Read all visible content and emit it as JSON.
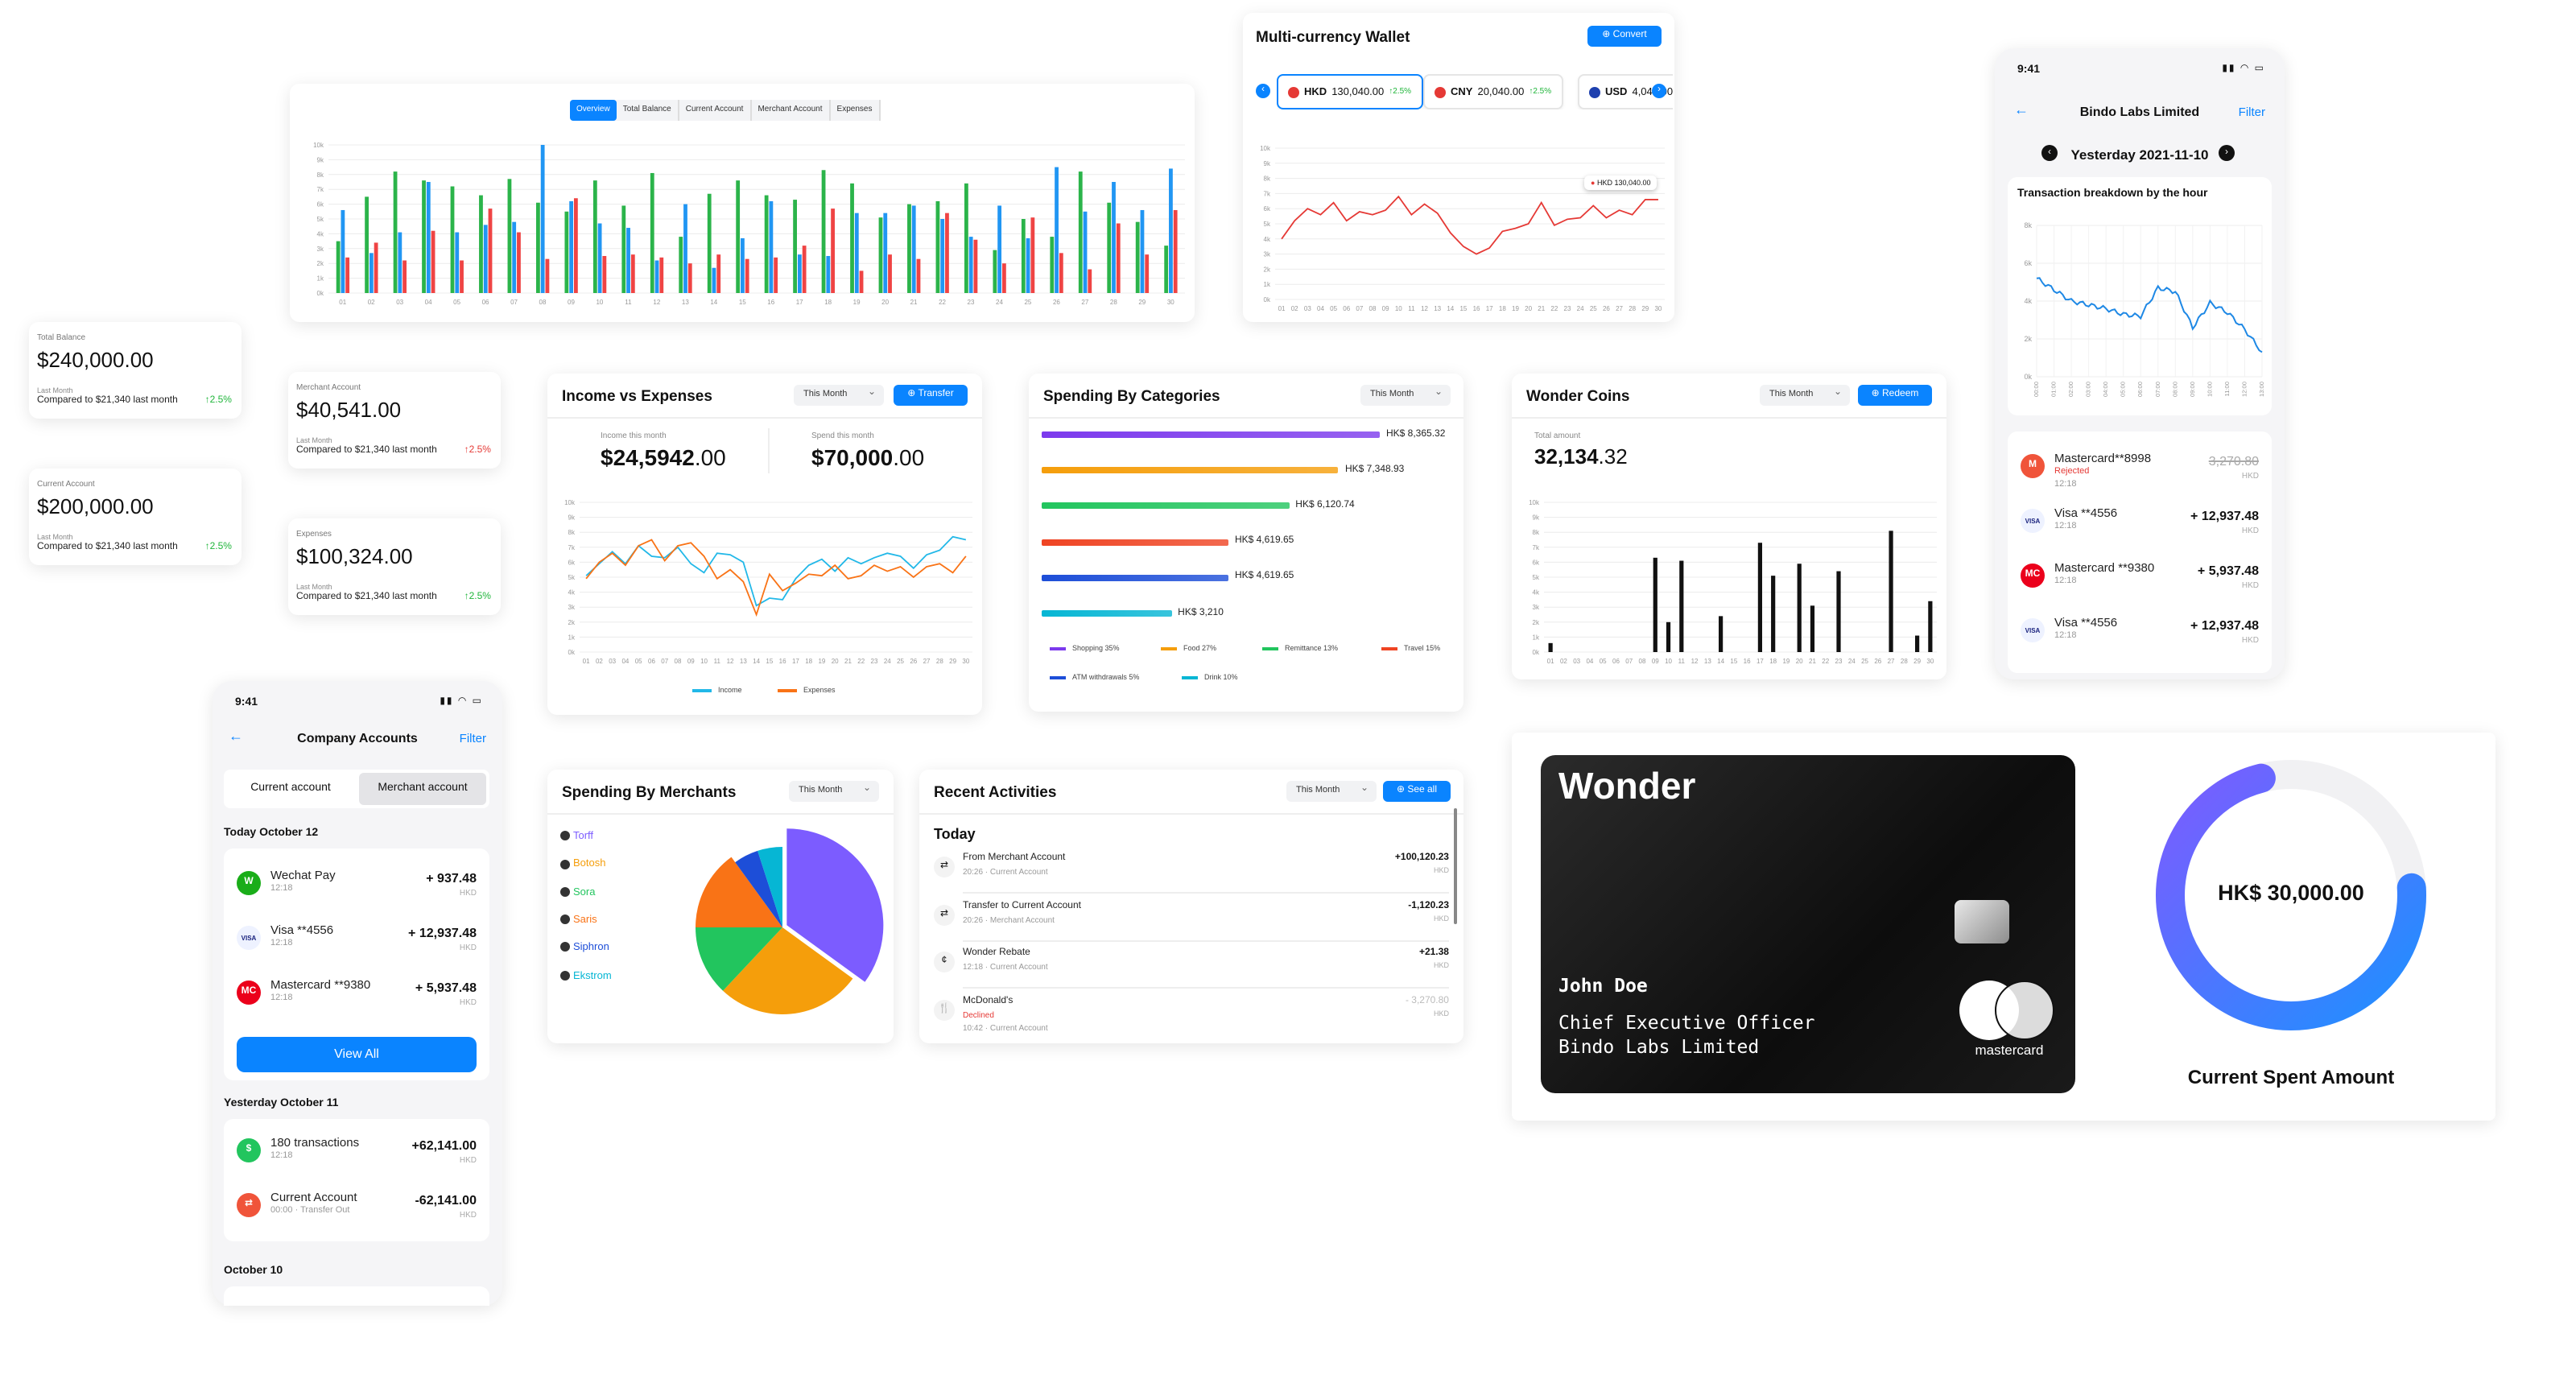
{
  "overview": {
    "tabs": [
      "Overview",
      "Total Balance",
      "Current Account",
      "Merchant Account",
      "Expenses"
    ],
    "y_ticks": [
      "10k",
      "9k",
      "8k",
      "7k",
      "6k",
      "5k",
      "4k",
      "3k",
      "2k",
      "1k",
      "0k"
    ],
    "x_ticks": [
      "01",
      "02",
      "03",
      "04",
      "05",
      "06",
      "07",
      "08",
      "09",
      "10",
      "11",
      "12",
      "13",
      "14",
      "15",
      "16",
      "17",
      "18",
      "19",
      "20",
      "21",
      "22",
      "23",
      "24",
      "25",
      "26",
      "27",
      "28",
      "29",
      "30"
    ]
  },
  "balances": [
    {
      "label": "Total Balance",
      "amount": "$240,000",
      "cents": ".00",
      "sub": "Last Month",
      "compare": "Compared to $21,340 last month",
      "pct": "↑2.5%",
      "dir": "up"
    },
    {
      "label": "Current Account",
      "amount": "$200,000",
      "cents": ".00",
      "sub": "Last Month",
      "compare": "Compared to $21,340 last month",
      "pct": "↑2.5%",
      "dir": "up"
    },
    {
      "label": "Merchant Account",
      "amount": "$40,541",
      "cents": ".00",
      "sub": "Last Month",
      "compare": "Compared to $21,340 last month",
      "pct": "↑2.5%",
      "dir": "down"
    },
    {
      "label": "Expenses",
      "amount": "$100,324",
      "cents": ".00",
      "sub": "Last Month",
      "compare": "Compared to $21,340 last month",
      "pct": "↑2.5%",
      "dir": "up"
    }
  ],
  "wallet": {
    "title": "Multi-currency Wallet",
    "convert": "⊕ Convert",
    "currencies": [
      {
        "code": "HKD",
        "amount": "130,040.00",
        "pct": "↑2.5%",
        "flag": "#e53935"
      },
      {
        "code": "CNY",
        "amount": "20,040.00",
        "pct": "↑2.5%",
        "flag": "#e53935"
      },
      {
        "code": "USD",
        "amount": "4,040.00",
        "pct": "",
        "flag": "#1e40af"
      }
    ],
    "tooltip": "HKD 130,040.00",
    "y_ticks": [
      "10k",
      "9k",
      "8k",
      "7k",
      "6k",
      "5k",
      "4k",
      "3k",
      "2k",
      "1k",
      "0k"
    ],
    "x_ticks": [
      "01",
      "02",
      "03",
      "04",
      "05",
      "06",
      "07",
      "08",
      "09",
      "10",
      "11",
      "12",
      "13",
      "14",
      "15",
      "16",
      "17",
      "18",
      "19",
      "20",
      "21",
      "22",
      "23",
      "24",
      "25",
      "26",
      "27",
      "28",
      "29",
      "30"
    ]
  },
  "bindo_phone": {
    "time": "9:41",
    "title": "Bindo Labs Limited",
    "filter": "Filter",
    "date": "Yesterday 2021-11-10",
    "chart_title": "Transaction breakdown by the hour",
    "y_ticks": [
      "8k",
      "6k",
      "4k",
      "2k",
      "0k"
    ],
    "x_ticks": [
      "00:00",
      "01:00",
      "02:00",
      "03:00",
      "04:00",
      "05:00",
      "06:00",
      "07:00",
      "08:00",
      "09:00",
      "10:00",
      "11:00",
      "12:00",
      "13:00"
    ],
    "rows": [
      {
        "name": "Mastercard**8998",
        "status": "Rejected",
        "time": "12:18",
        "amount": "3,270.80",
        "cur": "HKD",
        "icon": "M",
        "color": "#f0543a"
      },
      {
        "name": "Visa **4556",
        "status": "",
        "time": "12:18",
        "amount": "+ 12,937.48",
        "cur": "HKD",
        "icon": "VISA",
        "color": "#1a237e"
      },
      {
        "name": "Mastercard **9380",
        "status": "",
        "time": "12:18",
        "amount": "+ 5,937.48",
        "cur": "HKD",
        "icon": "MC",
        "color": "#eb001b"
      },
      {
        "name": "Visa **4556",
        "status": "",
        "time": "12:18",
        "amount": "+ 12,937.48",
        "cur": "HKD",
        "icon": "VISA",
        "color": "#1a237e"
      }
    ]
  },
  "income": {
    "title": "Income vs Expenses",
    "period": "This Month",
    "transfer": "⊕ Transfer",
    "income_label": "Income this month",
    "income_amt": "$24,5942",
    "income_cents": ".00",
    "spend_label": "Spend this month",
    "spend_amt": "$70,000",
    "spend_cents": ".00",
    "legend": [
      "Income",
      "Expenses"
    ],
    "y_ticks": [
      "10k",
      "9k",
      "8k",
      "7k",
      "6k",
      "5k",
      "4k",
      "3k",
      "2k",
      "1k",
      "0k"
    ],
    "x_ticks": [
      "01",
      "02",
      "03",
      "04",
      "05",
      "06",
      "07",
      "08",
      "09",
      "10",
      "11",
      "12",
      "13",
      "14",
      "15",
      "16",
      "17",
      "18",
      "19",
      "20",
      "21",
      "22",
      "23",
      "24",
      "25",
      "26",
      "27",
      "28",
      "29",
      "30"
    ]
  },
  "categories": {
    "title": "Spending By Categories",
    "period": "This Month",
    "bars": [
      {
        "label": "HK$ 8,365.32",
        "color": "#7c3aed"
      },
      {
        "label": "HK$ 7,348.93",
        "color": "#f59e0b"
      },
      {
        "label": "HK$ 6,120.74",
        "color": "#22c55e"
      },
      {
        "label": "HK$ 4,619.65",
        "color": "#ef4423"
      },
      {
        "label": "HK$ 4,619.65",
        "color": "#1d4ed8"
      },
      {
        "label": "HK$ 3,210",
        "color": "#06b6d4"
      }
    ],
    "legend": [
      {
        "label": "Shopping 35%",
        "color": "#7c3aed"
      },
      {
        "label": "Food 27%",
        "color": "#f59e0b"
      },
      {
        "label": "Remittance 13%",
        "color": "#22c55e"
      },
      {
        "label": "Travel 15%",
        "color": "#ef4423"
      },
      {
        "label": "ATM withdrawals 5%",
        "color": "#1d4ed8"
      },
      {
        "label": "Drink 10%",
        "color": "#06b6d4"
      }
    ]
  },
  "coins": {
    "title": "Wonder Coins",
    "period": "This Month",
    "redeem": "⊕ Redeem",
    "total_label": "Total amount",
    "total": "32,134",
    "total_dec": ".32",
    "y_ticks": [
      "10k",
      "9k",
      "8k",
      "7k",
      "6k",
      "5k",
      "4k",
      "3k",
      "2k",
      "1k",
      "0k"
    ],
    "x_ticks": [
      "01",
      "02",
      "03",
      "04",
      "05",
      "06",
      "07",
      "08",
      "09",
      "10",
      "11",
      "12",
      "13",
      "14",
      "15",
      "16",
      "17",
      "18",
      "19",
      "20",
      "21",
      "22",
      "23",
      "24",
      "25",
      "26",
      "27",
      "28",
      "29",
      "30"
    ]
  },
  "company_phone": {
    "time": "9:41",
    "title": "Company Accounts",
    "filter": "Filter",
    "tabs": [
      "Current account",
      "Merchant account"
    ],
    "today": "Today October 12",
    "today_rows": [
      {
        "name": "Wechat Pay",
        "time": "12:18",
        "amount": "+ 937.48",
        "cur": "HKD",
        "icon": "W",
        "color": "#1aad19"
      },
      {
        "name": "Visa **4556",
        "time": "12:18",
        "amount": "+ 12,937.48",
        "cur": "HKD",
        "icon": "VISA",
        "color": "#1a237e"
      },
      {
        "name": "Mastercard **9380",
        "time": "12:18",
        "amount": "+ 5,937.48",
        "cur": "HKD",
        "icon": "MC",
        "color": "#eb001b"
      }
    ],
    "view_all": "View All",
    "yesterday": "Yesterday October 11",
    "yesterday_rows": [
      {
        "name": "180 transactions",
        "time": "12:18",
        "amount": "+62,141.00",
        "cur": "HKD",
        "icon": "$",
        "color": "#22c55e"
      },
      {
        "name": "Current Account",
        "time": "00:00 · Transfer Out",
        "amount": "-62,141.00",
        "cur": "HKD",
        "icon": "⇄",
        "color": "#f0543a"
      }
    ],
    "older": "October 10"
  },
  "merchants": {
    "title": "Spending By Merchants",
    "period": "This Month",
    "items": [
      {
        "label": "Torff",
        "color": "#7c5cff"
      },
      {
        "label": "Botosh",
        "color": "#f59e0b"
      },
      {
        "label": "Sora",
        "color": "#22c55e"
      },
      {
        "label": "Saris",
        "color": "#f97316"
      },
      {
        "label": "Siphron",
        "color": "#1d4ed8"
      },
      {
        "label": "Ekstrom",
        "color": "#06b6d4"
      }
    ]
  },
  "activities": {
    "title": "Recent Activities",
    "period": "This Month",
    "see_all": "⊕ See all",
    "day": "Today",
    "rows": [
      {
        "name": "From Merchant Account",
        "status": "",
        "meta": "20:26 · Current Account",
        "amount": "+100,120.23",
        "cur": "HKD",
        "icon": "⇄"
      },
      {
        "name": "Transfer to Current Account",
        "status": "",
        "meta": "20:26 · Merchant Account",
        "amount": "-1,120.23",
        "cur": "HKD",
        "icon": "⇄"
      },
      {
        "name": "Wonder Rebate",
        "status": "",
        "meta": "12:18 · Current Account",
        "amount": "+21.38",
        "cur": "HKD",
        "icon": "¢"
      },
      {
        "name": "McDonald's",
        "status": "Declined",
        "meta": "10:42 · Current Account",
        "amount": "- 3,270.80",
        "cur": "HKD",
        "icon": "🍴"
      }
    ]
  },
  "card": {
    "brand": "Wonder",
    "holder": "John Doe",
    "role": "Chief Executive Officer",
    "company": "Bindo Labs Limited",
    "network": "mastercard"
  },
  "spent": {
    "amount": "HK$ 30,000.00",
    "label": "Current Spent Amount",
    "progress": 0.72
  },
  "chart_data": [
    {
      "type": "bar",
      "categories": [
        "01",
        "02",
        "03",
        "04",
        "05",
        "06",
        "07",
        "08",
        "09",
        "10",
        "11",
        "12",
        "13",
        "14",
        "15",
        "16",
        "17",
        "18",
        "19",
        "20",
        "21",
        "22",
        "23",
        "24",
        "25",
        "26",
        "27",
        "28",
        "29",
        "30"
      ],
      "ylim": [
        0,
        10
      ],
      "series": [
        {
          "color": "#2bb44a",
          "values": [
            3.5,
            6.5,
            8.2,
            7.6,
            7.2,
            6.6,
            7.7,
            6.1,
            5.5,
            7.6,
            5.9,
            8.1,
            3.8,
            6.7,
            7.6,
            6.6,
            6.3,
            8.3,
            7.4,
            5.1,
            6.0,
            6.2,
            7.4,
            2.9,
            5.0,
            3.8,
            8.2,
            6.1,
            4.8,
            3.2
          ]
        },
        {
          "color": "#2196f3",
          "values": [
            5.6,
            2.7,
            4.1,
            7.5,
            4.1,
            4.6,
            4.8,
            10.0,
            6.2,
            4.7,
            4.4,
            2.2,
            6.0,
            1.7,
            3.7,
            6.2,
            2.6,
            2.5,
            5.4,
            5.4,
            5.9,
            5.0,
            3.8,
            5.9,
            3.7,
            8.5,
            5.5,
            7.5,
            5.6,
            8.4
          ]
        },
        {
          "color": "#ef4444",
          "values": [
            2.4,
            3.4,
            2.2,
            4.2,
            2.2,
            5.7,
            4.1,
            2.3,
            6.4,
            2.5,
            2.6,
            2.4,
            2.0,
            2.6,
            2.3,
            2.4,
            3.2,
            5.7,
            1.5,
            2.6,
            2.3,
            5.4,
            3.6,
            2.0,
            5.1,
            2.7,
            1.6,
            4.7,
            2.6,
            5.6
          ]
        }
      ]
    },
    {
      "type": "line",
      "x": [
        "01",
        "02",
        "03",
        "04",
        "05",
        "06",
        "07",
        "08",
        "09",
        "10",
        "11",
        "12",
        "13",
        "14",
        "15",
        "16",
        "17",
        "18",
        "19",
        "20",
        "21",
        "22",
        "23",
        "24",
        "25",
        "26",
        "27",
        "28",
        "29",
        "30"
      ],
      "ylim": [
        0,
        10
      ],
      "series": [
        {
          "color": "#e53935",
          "values": [
            4.0,
            5.2,
            6.0,
            5.6,
            6.4,
            5.2,
            5.8,
            5.6,
            5.9,
            6.8,
            5.6,
            6.3,
            5.7,
            4.4,
            3.5,
            3.0,
            3.4,
            4.5,
            4.7,
            5.0,
            6.4,
            4.9,
            5.3,
            5.4,
            6.2,
            5.4,
            5.9,
            5.6,
            6.6,
            6.6
          ]
        }
      ]
    },
    {
      "type": "line",
      "x": [
        "00:00",
        "01:00",
        "02:00",
        "03:00",
        "04:00",
        "05:00",
        "06:00",
        "07:00",
        "08:00",
        "09:00",
        "10:00",
        "11:00",
        "12:00",
        "13:00"
      ],
      "ylim": [
        0,
        8
      ],
      "series": [
        {
          "color": "#1e88e5",
          "values": [
            5.2,
            4.6,
            4.0,
            3.8,
            3.6,
            3.3,
            3.2,
            4.7,
            4.5,
            2.6,
            3.9,
            3.4,
            2.5,
            1.3
          ]
        }
      ]
    },
    {
      "type": "line",
      "x": [
        "01",
        "02",
        "03",
        "04",
        "05",
        "06",
        "07",
        "08",
        "09",
        "10",
        "11",
        "12",
        "13",
        "14",
        "15",
        "16",
        "17",
        "18",
        "19",
        "20",
        "21",
        "22",
        "23",
        "24",
        "25",
        "26",
        "27",
        "28",
        "29",
        "30"
      ],
      "ylim": [
        0,
        10
      ],
      "series": [
        {
          "name": "Income",
          "color": "#22b8e8",
          "values": [
            5.1,
            5.9,
            6.7,
            5.9,
            7.1,
            6.4,
            6.3,
            7.0,
            5.9,
            5.3,
            6.6,
            6.5,
            6.0,
            3.1,
            3.6,
            3.5,
            4.9,
            5.8,
            6.2,
            5.4,
            6.3,
            5.9,
            6.3,
            6.6,
            6.4,
            5.6,
            6.5,
            6.8,
            7.7,
            7.5
          ]
        },
        {
          "name": "Expenses",
          "color": "#f97316",
          "values": [
            4.9,
            6.0,
            6.6,
            5.8,
            7.1,
            7.5,
            6.1,
            7.1,
            7.3,
            6.4,
            4.9,
            5.5,
            4.7,
            2.5,
            5.2,
            4.1,
            4.6,
            5.2,
            5.1,
            5.8,
            4.9,
            5.1,
            5.8,
            5.4,
            5.7,
            5.0,
            5.7,
            5.9,
            5.3,
            6.4
          ]
        }
      ]
    },
    {
      "type": "bar",
      "categories": [
        "Shopping 35%",
        "Food 27%",
        "Remittance 13%",
        "Travel 15%",
        "ATM withdrawals 5%",
        "Drink 10%"
      ],
      "values": [
        8365.32,
        7348.93,
        6120.74,
        4619.65,
        4619.65,
        3210
      ]
    },
    {
      "type": "bar",
      "x": [
        "01",
        "02",
        "03",
        "04",
        "05",
        "06",
        "07",
        "08",
        "09",
        "10",
        "11",
        "12",
        "13",
        "14",
        "15",
        "16",
        "17",
        "18",
        "19",
        "20",
        "21",
        "22",
        "23",
        "24",
        "25",
        "26",
        "27",
        "28",
        "29",
        "30"
      ],
      "ylim": [
        0,
        10
      ],
      "series": [
        {
          "color": "#111111",
          "values": [
            0.6,
            0,
            0,
            0,
            0,
            0,
            0,
            0,
            6.3,
            2.0,
            6.1,
            0,
            0,
            2.4,
            0,
            0,
            7.3,
            5.1,
            0,
            5.9,
            3.1,
            0,
            5.4,
            0,
            0,
            0,
            8.1,
            0,
            1.1,
            3.4
          ]
        }
      ]
    },
    {
      "type": "pie",
      "categories": [
        "Torff",
        "Botosh",
        "Sora",
        "Saris",
        "Siphron",
        "Ekstrom"
      ],
      "values": [
        35,
        27,
        13,
        15,
        5,
        5
      ]
    }
  ]
}
